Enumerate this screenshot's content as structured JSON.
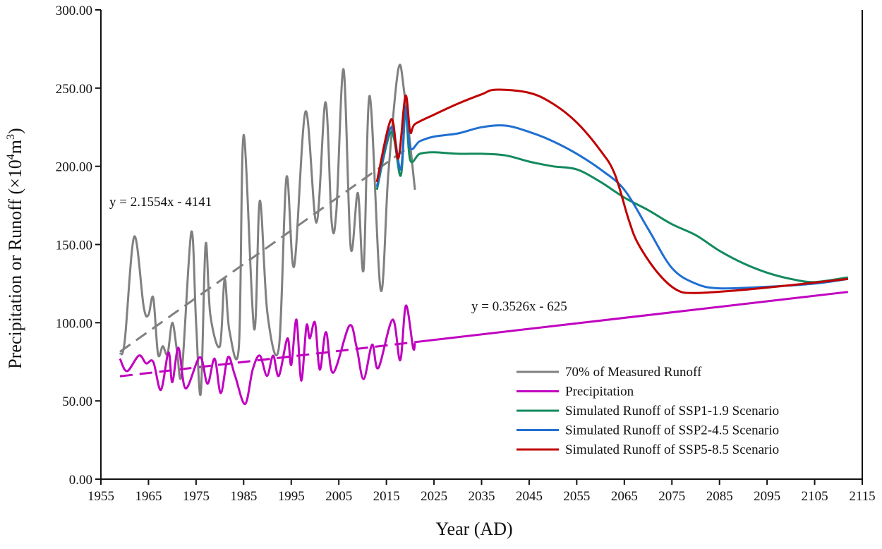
{
  "chart_data": {
    "type": "line",
    "title": "",
    "xlabel": "Year (AD)",
    "ylabel": "Precipitation or Runoff (×10⁴m³)",
    "ylabel_parts": {
      "main": "Precipitation or Runoff (×10",
      "sup": "4",
      "unit": "m",
      "sup2": "3",
      "close": ")"
    },
    "xlim": [
      1955,
      2115
    ],
    "ylim": [
      0,
      300
    ],
    "xticks": [
      "1955",
      "1965",
      "1975",
      "1985",
      "1995",
      "2005",
      "2015",
      "2025",
      "2035",
      "2045",
      "2055",
      "2065",
      "2075",
      "2085",
      "2095",
      "2105",
      "2115"
    ],
    "yticks": [
      "0.00",
      "50.00",
      "100.00",
      "150.00",
      "200.00",
      "250.00",
      "300.00"
    ],
    "grid": false,
    "legend_position": "bottom-right",
    "annotations": [
      {
        "text": "y = 2.1554x - 4141",
        "anchor_year": 1959,
        "anchor_value": 175
      },
      {
        "text": "y = 0.3526x - 625",
        "anchor_year": 2023,
        "anchor_value": 108
      }
    ],
    "series": [
      {
        "name": "70% of  Measured Runoff",
        "color": "#808080",
        "x": [
          1959,
          1960,
          1962,
          1964,
          1965,
          1966,
          1967,
          1968,
          1969,
          1970,
          1971,
          1972,
          1974,
          1975,
          1976,
          1977,
          1978,
          1980,
          1981,
          1982,
          1984,
          1985,
          1987.2,
          1988.4,
          1990,
          1992.4,
          1994,
          1995.6,
          1998,
          2000.3,
          2002.2,
          2003.5,
          2004.5,
          2006,
          2007.5,
          2009,
          2010.2,
          2011.5,
          2013.8,
          2015.4,
          2017.5,
          2018.8,
          2021
        ],
        "y": [
          80,
          88,
          155,
          110,
          105,
          116,
          80,
          85,
          80,
          100,
          82,
          68,
          158,
          100,
          55,
          150,
          105,
          85,
          128,
          95,
          85,
          220,
          96,
          178,
          106,
          84,
          193,
          136,
          235,
          164,
          241,
          164,
          172,
          262,
          148,
          183,
          134,
          245,
          121,
          195,
          262,
          246,
          185
        ]
      },
      {
        "name": "Precipitation",
        "color": "#c000c0",
        "x": [
          1959,
          1960.5,
          1963,
          1964.5,
          1966,
          1967.6,
          1969.2,
          1970,
          1971.3,
          1972.8,
          1975.8,
          1977.4,
          1978.9,
          1980.2,
          1981.7,
          1983.2,
          1985.3,
          1986.9,
          1988.4,
          1989.9,
          1991.2,
          1992.4,
          1994.2,
          1995,
          1996.1,
          1997.1,
          1998.2,
          1998.9,
          2000,
          2001,
          2002.3,
          2003.8,
          2007.2,
          2008.7,
          2010.2,
          2012,
          2013.3,
          2016.3,
          2017.9,
          2019.1,
          2020.6,
          2021
        ],
        "y": [
          77,
          69,
          79,
          74,
          75,
          57,
          81,
          62,
          84,
          58,
          78,
          61,
          77,
          55,
          78,
          66,
          48,
          70,
          79,
          66,
          79,
          66,
          90,
          73,
          102,
          63,
          98,
          90,
          100,
          70,
          94,
          68,
          98,
          85,
          64,
          86,
          71,
          102,
          76,
          111,
          84,
          87
        ]
      },
      {
        "name": "Simulated Runoff of SSP1-1.9 Scenario",
        "color": "#138a5e",
        "x": [
          2013,
          2016,
          2018,
          2019,
          2020,
          2022,
          2025,
          2030,
          2035,
          2040,
          2045,
          2050,
          2055,
          2060,
          2065,
          2070,
          2075,
          2080,
          2085,
          2090,
          2095,
          2100,
          2105,
          2112
        ],
        "y": [
          185,
          222,
          194,
          235,
          204,
          208,
          209,
          208,
          208,
          207,
          203,
          200,
          198,
          190,
          180,
          172,
          163,
          156,
          146,
          138,
          132,
          128,
          126,
          129
        ]
      },
      {
        "name": "Simulated Runoff of SSP2-4.5 Scenario",
        "color": "#1f6fd0",
        "x": [
          2013,
          2016,
          2018,
          2019,
          2020,
          2022,
          2025,
          2030,
          2035,
          2040,
          2045,
          2050,
          2055,
          2060,
          2065,
          2070,
          2075,
          2080,
          2085,
          2095,
          2105,
          2112
        ],
        "y": [
          187,
          225,
          198,
          238,
          212,
          216,
          219,
          221,
          225,
          226,
          222,
          216,
          208,
          198,
          185,
          160,
          135,
          125,
          122,
          123,
          125,
          128
        ]
      },
      {
        "name": "Simulated Runoff of SSP5-8.5 Scenario",
        "color": "#c00000",
        "x": [
          2013,
          2016,
          2017.5,
          2019,
          2020,
          2021,
          2025,
          2030,
          2035,
          2038,
          2045,
          2050,
          2055,
          2060,
          2063,
          2066,
          2068,
          2072,
          2076,
          2080,
          2090,
          2100,
          2112
        ],
        "y": [
          190,
          230,
          205,
          245,
          222,
          227,
          233,
          240,
          246,
          249,
          247,
          240,
          228,
          210,
          195,
          165,
          150,
          132,
          121,
          119,
          121,
          124,
          128
        ]
      }
    ],
    "trendlines": [
      {
        "for": "70% of  Measured Runoff",
        "slope": 2.1554,
        "intercept": -4141,
        "x_range": [
          1959,
          2020
        ],
        "style": "dashed",
        "color": "#808080"
      },
      {
        "for": "Precipitation",
        "slope": 0.3526,
        "intercept": -625,
        "x_range": [
          1959,
          2021
        ],
        "style": "dashed",
        "color": "#c000c0"
      },
      {
        "for": "Precipitation",
        "slope": 0.3526,
        "intercept": -625,
        "x_range": [
          2021,
          2112
        ],
        "style": "solid",
        "color": "#c000c0"
      }
    ]
  }
}
